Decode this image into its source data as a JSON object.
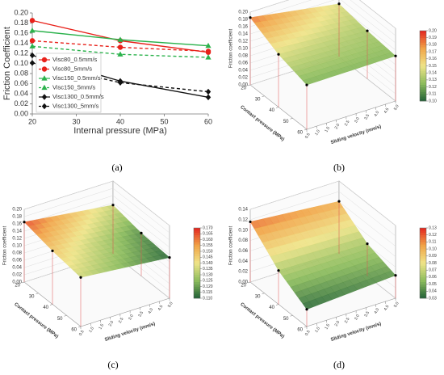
{
  "chart_data": [
    {
      "type": "line",
      "label": "(a)",
      "ylabel": "Friction Coefficient",
      "xlabel": "Internal pressure (MPa)",
      "x": [
        20,
        40,
        60
      ],
      "xlim": [
        20,
        60
      ],
      "xticks": [
        20,
        30,
        40,
        50,
        60
      ],
      "ylim": [
        0,
        0.2
      ],
      "yticks": [
        {
          "value": 0,
          "label": "0.00"
        },
        {
          "value": 0.02,
          "label": "0.02"
        },
        {
          "value": 0.04,
          "label": "0.04"
        },
        {
          "value": 0.06,
          "label": "0.06"
        },
        {
          "value": 0.08,
          "label": "0.08"
        },
        {
          "value": 0.1,
          "label": "0.10"
        },
        {
          "value": 0.12,
          "label": "0.12"
        },
        {
          "value": 0.14,
          "label": "0.14"
        },
        {
          "value": 0.16,
          "label": "0.16"
        },
        {
          "value": 0.18,
          "label": "0.18"
        },
        {
          "value": 0.2,
          "label": "0.20"
        }
      ],
      "legend": "lower left",
      "series": [
        {
          "name": "Visc80_0.5mm/s",
          "color": "#e8221b",
          "marker": "circle",
          "dashed": false,
          "values": [
            0.185,
            0.145,
            0.122
          ]
        },
        {
          "name": "Visc80_5mm/s",
          "color": "#e8221b",
          "marker": "circle",
          "dashed": true,
          "values": [
            0.145,
            0.132,
            0.124
          ]
        },
        {
          "name": "Visc150_0.5mm/s",
          "color": "#2bb24c",
          "marker": "triangle",
          "dashed": false,
          "values": [
            0.165,
            0.147,
            0.135
          ]
        },
        {
          "name": "Visc150_5mm/s",
          "color": "#2bb24c",
          "marker": "triangle",
          "dashed": true,
          "values": [
            0.134,
            0.118,
            0.112
          ]
        },
        {
          "name": "Visc1300_0.5mm/s",
          "color": "#111111",
          "marker": "diamond",
          "dashed": false,
          "values": [
            0.116,
            0.065,
            0.033
          ]
        },
        {
          "name": "Visc1300_5mm/s",
          "color": "#111111",
          "marker": "diamond",
          "dashed": true,
          "values": [
            0.101,
            0.062,
            0.044
          ]
        }
      ]
    },
    {
      "type": "surface",
      "label": "(b)",
      "xlabel": "Contact pressure (MPa)",
      "ylabel": "Sliding velocity (mm/s)",
      "zlabel": "Friction coefficient",
      "xlim": [
        20,
        60
      ],
      "xticks": [
        20,
        30,
        40,
        50,
        60
      ],
      "ylim": [
        0.5,
        5
      ],
      "yticks": [
        0.5,
        {
          "value": 1,
          "label": "1.0"
        },
        1.5,
        {
          "value": 2,
          "label": "2.0"
        },
        2.5,
        {
          "value": 3,
          "label": "3.0"
        },
        3.5,
        {
          "value": 4,
          "label": "4.0"
        },
        4.5,
        {
          "value": 5,
          "label": "5.0"
        }
      ],
      "zlim": [
        0,
        0.2
      ],
      "zticks": [
        {
          "value": 0,
          "label": "0.00"
        },
        {
          "value": 0.02,
          "label": "0.02"
        },
        {
          "value": 0.04,
          "label": "0.04"
        },
        {
          "value": 0.06,
          "label": "0.06"
        },
        {
          "value": 0.08,
          "label": "0.08"
        },
        {
          "value": 0.1,
          "label": "0.10"
        },
        {
          "value": 0.12,
          "label": "0.12"
        },
        {
          "value": 0.14,
          "label": "0.14"
        },
        {
          "value": 0.16,
          "label": "0.16"
        },
        {
          "value": 0.18,
          "label": "0.18"
        },
        {
          "value": 0.2,
          "label": "0.20"
        }
      ],
      "colormap": [
        "#1f5f35",
        "#8cbc5c",
        "#efe488",
        "#f1a447",
        "#e3261f"
      ],
      "clim": [
        0.1,
        0.2
      ],
      "cticks": [
        {
          "value": 0.1,
          "label": "0.10"
        },
        {
          "value": 0.11,
          "label": "0.11"
        },
        {
          "value": 0.12,
          "label": "0.12"
        },
        {
          "value": 0.13,
          "label": "0.13"
        },
        {
          "value": 0.14,
          "label": "0.14"
        },
        {
          "value": 0.15,
          "label": "0.15"
        },
        {
          "value": 0.16,
          "label": "0.16"
        },
        {
          "value": 0.17,
          "label": "0.17"
        },
        {
          "value": 0.18,
          "label": "0.18"
        },
        {
          "value": 0.19,
          "label": "0.19"
        },
        {
          "value": 0.2,
          "label": "0.20"
        }
      ],
      "x": [
        20,
        40,
        60,
        20,
        40,
        60
      ],
      "y": [
        0.5,
        0.5,
        0.5,
        5,
        5,
        5
      ],
      "z": [
        0.185,
        0.145,
        0.122,
        0.145,
        0.132,
        0.124
      ]
    },
    {
      "type": "surface",
      "label": "(c)",
      "xlabel": "Contact pressure (MPa)",
      "ylabel": "Sliding velocity (mm/s)",
      "zlabel": "Friction coefficient",
      "xlim": [
        20,
        60
      ],
      "xticks": [
        20,
        30,
        40,
        50,
        60
      ],
      "ylim": [
        0.5,
        5
      ],
      "yticks": [
        0.5,
        {
          "value": 1,
          "label": "1.0"
        },
        1.5,
        {
          "value": 2,
          "label": "2.0"
        },
        2.5,
        {
          "value": 3,
          "label": "3.0"
        },
        3.5,
        {
          "value": 4,
          "label": "4.0"
        },
        4.5,
        {
          "value": 5,
          "label": "5.0"
        }
      ],
      "zlim": [
        0,
        0.2
      ],
      "zticks": [
        {
          "value": 0,
          "label": "0.00"
        },
        {
          "value": 0.02,
          "label": "0.02"
        },
        {
          "value": 0.04,
          "label": "0.04"
        },
        {
          "value": 0.06,
          "label": "0.06"
        },
        {
          "value": 0.08,
          "label": "0.08"
        },
        {
          "value": 0.1,
          "label": "0.10"
        },
        {
          "value": 0.12,
          "label": "0.12"
        },
        {
          "value": 0.14,
          "label": "0.14"
        },
        {
          "value": 0.16,
          "label": "0.16"
        },
        {
          "value": 0.18,
          "label": "0.18"
        },
        {
          "value": 0.2,
          "label": "0.20"
        }
      ],
      "colormap": [
        "#1f5f35",
        "#8cbc5c",
        "#efe488",
        "#f1a447",
        "#e3261f"
      ],
      "clim": [
        0.11,
        0.17
      ],
      "cticks": [
        {
          "value": 0.11,
          "label": "0.110"
        },
        0.115,
        {
          "value": 0.12,
          "label": "0.120"
        },
        0.125,
        {
          "value": 0.13,
          "label": "0.130"
        },
        0.135,
        {
          "value": 0.14,
          "label": "0.140"
        },
        0.145,
        {
          "value": 0.15,
          "label": "0.150"
        },
        0.155,
        {
          "value": 0.16,
          "label": "0.160"
        },
        0.165,
        {
          "value": 0.17,
          "label": "0.170"
        }
      ],
      "x": [
        20,
        40,
        60,
        20,
        40,
        60
      ],
      "y": [
        0.5,
        0.5,
        0.5,
        5,
        5,
        5
      ],
      "z": [
        0.165,
        0.147,
        0.135,
        0.134,
        0.118,
        0.112
      ]
    },
    {
      "type": "surface",
      "label": "(d)",
      "xlabel": "Contact pressure (MPa)",
      "ylabel": "Sliding velocity (mm/s)",
      "zlabel": "Friction coefficient",
      "xlim": [
        20,
        60
      ],
      "xticks": [
        20,
        30,
        40,
        50,
        60
      ],
      "ylim": [
        0.5,
        5
      ],
      "yticks": [
        0.5,
        {
          "value": 1,
          "label": "1.0"
        },
        1.5,
        {
          "value": 2,
          "label": "2.0"
        },
        2.5,
        {
          "value": 3,
          "label": "3.0"
        },
        3.5,
        {
          "value": 4,
          "label": "4.0"
        },
        4.5,
        {
          "value": 5,
          "label": "5.0"
        }
      ],
      "zlim": [
        0,
        0.14
      ],
      "zticks": [
        {
          "value": 0,
          "label": "0.00"
        },
        {
          "value": 0.02,
          "label": "0.02"
        },
        {
          "value": 0.04,
          "label": "0.04"
        },
        {
          "value": 0.06,
          "label": "0.06"
        },
        {
          "value": 0.08,
          "label": "0.08"
        },
        {
          "value": 0.1,
          "label": "0.10"
        },
        {
          "value": 0.12,
          "label": "0.12"
        },
        {
          "value": 0.14,
          "label": "0.14"
        }
      ],
      "colormap": [
        "#1f5f35",
        "#8cbc5c",
        "#efe488",
        "#f1a447",
        "#e3261f"
      ],
      "clim": [
        0.03,
        0.13
      ],
      "cticks": [
        {
          "value": 0.03,
          "label": "0.03"
        },
        {
          "value": 0.04,
          "label": "0.04"
        },
        {
          "value": 0.05,
          "label": "0.05"
        },
        {
          "value": 0.06,
          "label": "0.06"
        },
        {
          "value": 0.07,
          "label": "0.07"
        },
        {
          "value": 0.08,
          "label": "0.08"
        },
        {
          "value": 0.09,
          "label": "0.09"
        },
        {
          "value": 0.1,
          "label": "0.10"
        },
        {
          "value": 0.11,
          "label": "0.11"
        },
        {
          "value": 0.12,
          "label": "0.12"
        },
        {
          "value": 0.13,
          "label": "0.13"
        }
      ],
      "x": [
        20,
        40,
        60,
        20,
        40,
        60
      ],
      "y": [
        0.5,
        0.5,
        0.5,
        5,
        5,
        5
      ],
      "z": [
        0.116,
        0.065,
        0.033,
        0.101,
        0.062,
        0.044
      ]
    }
  ]
}
